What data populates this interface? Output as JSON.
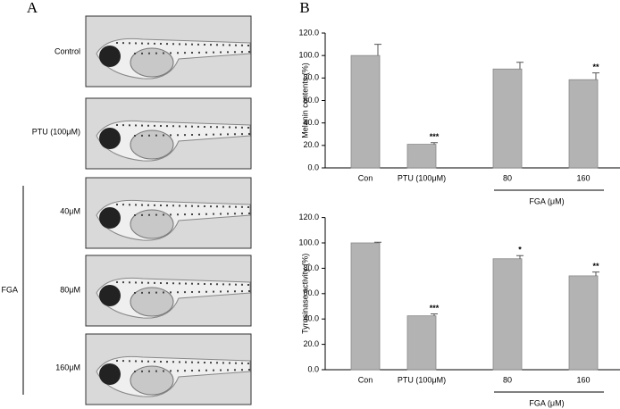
{
  "panel_a": {
    "panel_label": "A",
    "rows": [
      "Control",
      "PTU (100μM)",
      "40μM",
      "80μM",
      "160μM"
    ],
    "group_label": "FGA"
  },
  "chart_data": [
    {
      "type": "bar",
      "panel_label": "B",
      "y_label": "Melanin contents (%)",
      "categories": [
        "Con",
        "PTU (100μM)",
        "80",
        "160"
      ],
      "values": [
        100,
        21,
        88,
        78.5
      ],
      "errors": [
        10,
        1.5,
        6,
        6
      ],
      "value_labels": [
        null,
        "***",
        null,
        "**"
      ],
      "group_label": "FGA (μM)",
      "color": "#b3b3b3",
      "ylim": [
        0,
        120
      ],
      "yticks": [
        {
          "value": 0,
          "label": "0.0"
        },
        {
          "value": 20,
          "label": "20.0"
        },
        {
          "value": 40,
          "label": "40.0"
        },
        {
          "value": 60,
          "label": "60.0"
        },
        {
          "value": 80,
          "label": "80.0"
        },
        {
          "value": 100,
          "label": "100.0"
        },
        {
          "value": 120,
          "label": "120.0"
        }
      ]
    },
    {
      "type": "bar",
      "y_label": "Tyrosinase activity (%)",
      "categories": [
        "Con",
        "PTU (100μM)",
        "80",
        "160"
      ],
      "values": [
        100,
        42.5,
        87.5,
        74
      ],
      "errors": [
        0.5,
        1.5,
        2.5,
        3
      ],
      "value_labels": [
        null,
        "***",
        "*",
        "**"
      ],
      "group_label": "FGA (μM)",
      "color": "#b3b3b3",
      "ylim": [
        0,
        120
      ],
      "yticks": [
        {
          "value": 0,
          "label": "0.0"
        },
        {
          "value": 20,
          "label": "20.0"
        },
        {
          "value": 40,
          "label": "40.0"
        },
        {
          "value": 60,
          "label": "60.0"
        },
        {
          "value": 80,
          "label": "80.0"
        },
        {
          "value": 100,
          "label": "100.0"
        },
        {
          "value": 120,
          "label": "120.0"
        }
      ]
    }
  ]
}
